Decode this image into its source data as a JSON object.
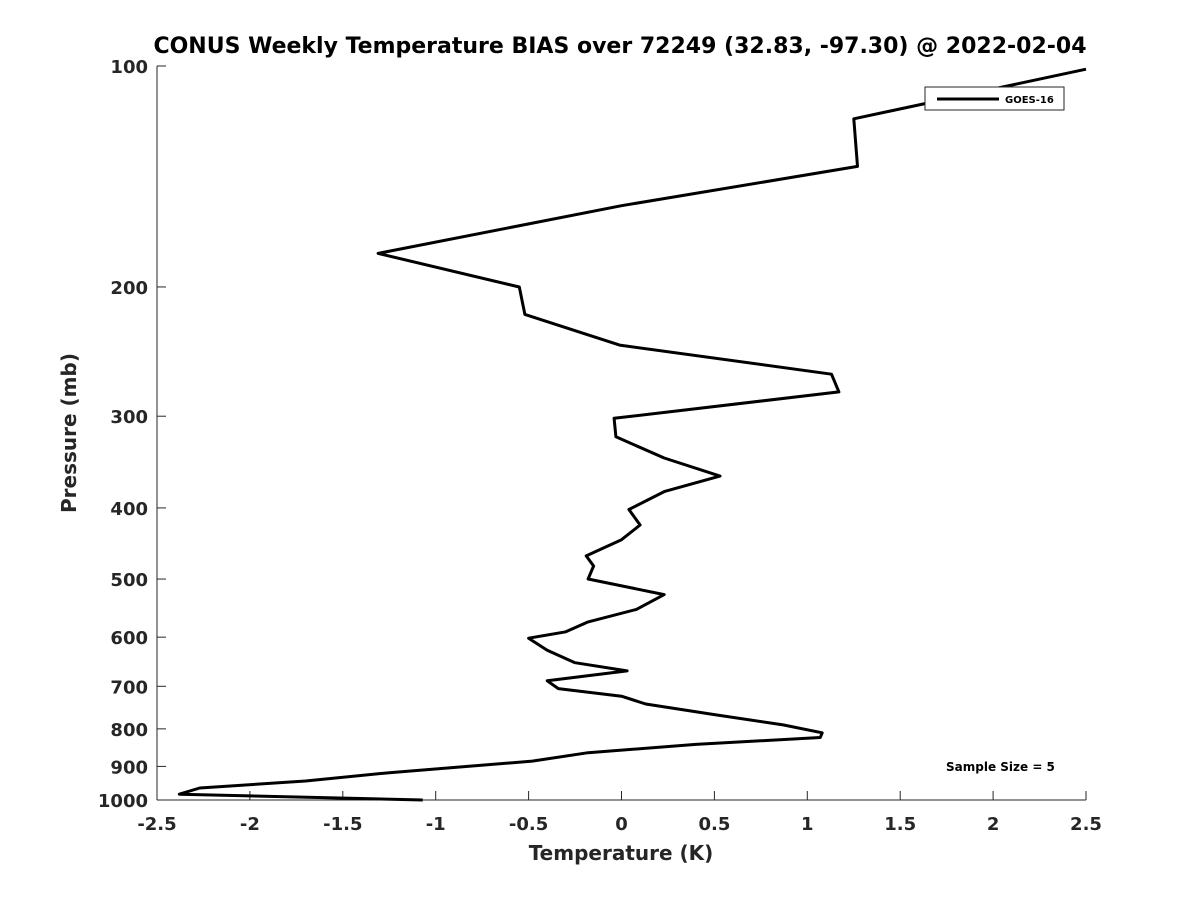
{
  "chart_data": {
    "type": "line",
    "title": "CONUS Weekly Temperature BIAS over 72249 (32.83, -97.30) @ 2022-02-04",
    "xlabel": "Temperature (K)",
    "ylabel": "Pressure (mb)",
    "xlim": [
      -2.5,
      2.5
    ],
    "ylim": [
      1000,
      100
    ],
    "yscale": "log",
    "y_reversed": true,
    "x_ticks": [
      -2.5,
      -2,
      -1.5,
      -1,
      -0.5,
      0,
      0.5,
      1,
      1.5,
      2,
      2.5
    ],
    "x_tick_labels": [
      "-2.5",
      "-2",
      "-1.5",
      "-1",
      "-0.5",
      "0",
      "0.5",
      "1",
      "1.5",
      "2",
      "2.5"
    ],
    "y_ticks": [
      100,
      200,
      300,
      400,
      500,
      600,
      700,
      800,
      900,
      1000
    ],
    "y_tick_labels": [
      "100",
      "200",
      "300",
      "400",
      "500",
      "600",
      "700",
      "800",
      "900",
      "1000"
    ],
    "grid": false,
    "legend_position": "top-right",
    "annotation": "Sample Size = 5",
    "series": [
      {
        "name": "GOES-16",
        "color": "#000000",
        "points": [
          {
            "x": 2.5,
            "p": 101
          },
          {
            "x": 1.25,
            "p": 118
          },
          {
            "x": 1.27,
            "p": 137
          },
          {
            "x": 0.0,
            "p": 155
          },
          {
            "x": -1.31,
            "p": 180
          },
          {
            "x": -0.55,
            "p": 200
          },
          {
            "x": -0.52,
            "p": 218
          },
          {
            "x": -0.01,
            "p": 240
          },
          {
            "x": 1.13,
            "p": 263
          },
          {
            "x": 1.17,
            "p": 278
          },
          {
            "x": -0.04,
            "p": 302
          },
          {
            "x": -0.03,
            "p": 320
          },
          {
            "x": 0.23,
            "p": 342
          },
          {
            "x": 0.53,
            "p": 362
          },
          {
            "x": 0.23,
            "p": 380
          },
          {
            "x": 0.04,
            "p": 402
          },
          {
            "x": 0.1,
            "p": 422
          },
          {
            "x": 0.0,
            "p": 442
          },
          {
            "x": -0.19,
            "p": 465
          },
          {
            "x": -0.15,
            "p": 480
          },
          {
            "x": -0.18,
            "p": 500
          },
          {
            "x": 0.23,
            "p": 525
          },
          {
            "x": 0.08,
            "p": 550
          },
          {
            "x": -0.18,
            "p": 572
          },
          {
            "x": -0.3,
            "p": 590
          },
          {
            "x": -0.5,
            "p": 602
          },
          {
            "x": -0.4,
            "p": 625
          },
          {
            "x": -0.25,
            "p": 650
          },
          {
            "x": 0.03,
            "p": 667
          },
          {
            "x": -0.4,
            "p": 688
          },
          {
            "x": -0.34,
            "p": 705
          },
          {
            "x": 0.0,
            "p": 722
          },
          {
            "x": 0.13,
            "p": 740
          },
          {
            "x": 0.5,
            "p": 765
          },
          {
            "x": 0.87,
            "p": 790
          },
          {
            "x": 1.08,
            "p": 810
          },
          {
            "x": 1.07,
            "p": 822
          },
          {
            "x": 0.4,
            "p": 840
          },
          {
            "x": -0.18,
            "p": 862
          },
          {
            "x": -0.48,
            "p": 885
          },
          {
            "x": -1.25,
            "p": 918
          },
          {
            "x": -1.7,
            "p": 942
          },
          {
            "x": -2.27,
            "p": 963
          },
          {
            "x": -2.38,
            "p": 982
          },
          {
            "x": -1.07,
            "p": 1000
          }
        ]
      }
    ]
  }
}
